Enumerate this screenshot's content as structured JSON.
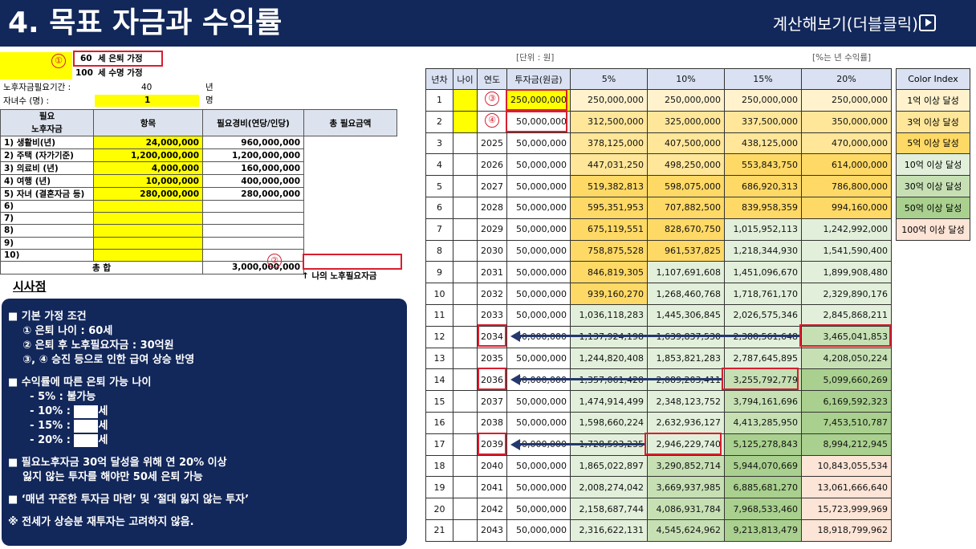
{
  "header": {
    "title": "4. 목표 자금과 수익률",
    "calc_link": "계산해보기(더블클릭)"
  },
  "inputs": {
    "retire_age": "60",
    "retire_label": "세 은퇴 가정",
    "life_age": "100",
    "life_label": "세 수명 가정",
    "period_label": "노후자금필요기간 :",
    "period_value": "40",
    "period_unit": "년",
    "children_label": "자녀수 (명) :",
    "children_value": "1",
    "children_unit": "명"
  },
  "needs": {
    "side_label_1": "필요",
    "side_label_2": "노후자금",
    "col_item": "항목",
    "col_cost": "필요경비(연당/인당)",
    "col_total": "총 필요금액",
    "rows": [
      {
        "item": "1) 생활비(년)",
        "cost": "24,000,000",
        "total": "960,000,000"
      },
      {
        "item": "2) 주택 (자가기준)",
        "cost": "1,200,000,000",
        "total": "1,200,000,000"
      },
      {
        "item": "3) 의료비 (년)",
        "cost": "4,000,000",
        "total": "160,000,000"
      },
      {
        "item": "4) 여행 (년)",
        "cost": "10,000,000",
        "total": "400,000,000"
      },
      {
        "item": "5) 자녀 (결혼자금 등)",
        "cost": "280,000,000",
        "total": "280,000,000"
      },
      {
        "item": "6)",
        "cost": "",
        "total": ""
      },
      {
        "item": "7)",
        "cost": "",
        "total": ""
      },
      {
        "item": "8)",
        "cost": "",
        "total": ""
      },
      {
        "item": "9)",
        "cost": "",
        "total": ""
      },
      {
        "item": "10)",
        "cost": "",
        "total": ""
      }
    ],
    "sum_label": "총 합",
    "sum_value": "3,000,000,000",
    "sum_note": "↑ 나의 노후필요자금"
  },
  "markers": {
    "m1": "①",
    "m2": "②",
    "m3": "③",
    "m4": "④"
  },
  "insight": {
    "title": "시사점",
    "lines": [
      "■ 기본 가정 조건",
      "    ① 은퇴 나이 : 60세",
      "    ② 은퇴 후 노후필요자금 : 30억원",
      "    ③, ④ 승진 등으로 인한 급여 상승 반영",
      "",
      "■ 수익률에 따른 은퇴 가능 나이",
      "      - 5% : 불가능",
      "      - 10% : ",
      "      - 15% : ",
      "      - 20% : ",
      "",
      "■ 필요노후자금 30억 달성을 위해 연 20% 이상",
      "    잃지 않는 투자를 해야만 50세 은퇴 가능",
      "",
      "■ ‘매년 꾸준한 투자금 마련’ 및 ‘절대 잃지 않는 투자’",
      "",
      "※ 전세가 상승분 재투자는 고려하지 않음."
    ],
    "mask_suffix": "세"
  },
  "table": {
    "unit_left": "[단위 : 원]",
    "unit_right": "[%는 년 수익률]",
    "headers": [
      "년차",
      "나이",
      "연도",
      "투자금(원금)",
      "5%",
      "10%",
      "15%",
      "20%"
    ],
    "rows": [
      [
        "1",
        "",
        "",
        "250,000,000",
        "250,000,000",
        "250,000,000",
        "250,000,000",
        "250,000,000"
      ],
      [
        "2",
        "",
        "",
        "50,000,000",
        "312,500,000",
        "325,000,000",
        "337,500,000",
        "350,000,000"
      ],
      [
        "3",
        "",
        "2025",
        "50,000,000",
        "378,125,000",
        "407,500,000",
        "438,125,000",
        "470,000,000"
      ],
      [
        "4",
        "",
        "2026",
        "50,000,000",
        "447,031,250",
        "498,250,000",
        "553,843,750",
        "614,000,000"
      ],
      [
        "5",
        "",
        "2027",
        "50,000,000",
        "519,382,813",
        "598,075,000",
        "686,920,313",
        "786,800,000"
      ],
      [
        "6",
        "",
        "2028",
        "50,000,000",
        "595,351,953",
        "707,882,500",
        "839,958,359",
        "994,160,000"
      ],
      [
        "7",
        "",
        "2029",
        "50,000,000",
        "675,119,551",
        "828,670,750",
        "1,015,952,113",
        "1,242,992,000"
      ],
      [
        "8",
        "",
        "2030",
        "50,000,000",
        "758,875,528",
        "961,537,825",
        "1,218,344,930",
        "1,541,590,400"
      ],
      [
        "9",
        "",
        "2031",
        "50,000,000",
        "846,819,305",
        "1,107,691,608",
        "1,451,096,670",
        "1,899,908,480"
      ],
      [
        "10",
        "",
        "2032",
        "50,000,000",
        "939,160,270",
        "1,268,460,768",
        "1,718,761,170",
        "2,329,890,176"
      ],
      [
        "11",
        "",
        "2033",
        "50,000,000",
        "1,036,118,283",
        "1,445,306,845",
        "2,026,575,346",
        "2,845,868,211"
      ],
      [
        "12",
        "",
        "2034",
        "50,000,000",
        "1,137,924,198",
        "1,639,837,530",
        "2,380,561,648",
        "3,465,041,853"
      ],
      [
        "13",
        "",
        "2035",
        "50,000,000",
        "1,244,820,408",
        "1,853,821,283",
        "2,787,645,895",
        "4,208,050,224"
      ],
      [
        "14",
        "",
        "2036",
        "50,000,000",
        "1,357,061,428",
        "2,089,203,411",
        "3,255,792,779",
        "5,099,660,269"
      ],
      [
        "15",
        "",
        "2037",
        "50,000,000",
        "1,474,914,499",
        "2,348,123,752",
        "3,794,161,696",
        "6,169,592,323"
      ],
      [
        "16",
        "",
        "2038",
        "50,000,000",
        "1,598,660,224",
        "2,632,936,127",
        "4,413,285,950",
        "7,453,510,787"
      ],
      [
        "17",
        "",
        "2039",
        "50,000,000",
        "1,728,593,235",
        "2,946,229,740",
        "5,125,278,843",
        "8,994,212,945"
      ],
      [
        "18",
        "",
        "2040",
        "50,000,000",
        "1,865,022,897",
        "3,290,852,714",
        "5,944,070,669",
        "10,843,055,534"
      ],
      [
        "19",
        "",
        "2041",
        "50,000,000",
        "2,008,274,042",
        "3,669,937,985",
        "6,885,681,270",
        "13,061,666,640"
      ],
      [
        "20",
        "",
        "2042",
        "50,000,000",
        "2,158,687,744",
        "4,086,931,784",
        "7,968,533,460",
        "15,723,999,969"
      ],
      [
        "21",
        "",
        "2043",
        "50,000,000",
        "2,316,622,131",
        "4,545,624,962",
        "9,213,813,479",
        "18,918,799,962"
      ]
    ]
  },
  "color_index": {
    "header": "Color Index",
    "items": [
      {
        "label": "1억 이상 달성",
        "color": "#fff2cc"
      },
      {
        "label": "3억 이상 달성",
        "color": "#ffe699"
      },
      {
        "label": "5억 이상 달성",
        "color": "#ffd966"
      },
      {
        "label": "10억 이상 달성",
        "color": "#e2efda"
      },
      {
        "label": "30억 이상 달성",
        "color": "#c6e0b4"
      },
      {
        "label": "50억 이상 달성",
        "color": "#a9d08e"
      },
      {
        "label": "100억 이상 달성",
        "color": "#fce4d6"
      }
    ]
  },
  "colors": {
    "navy": "#12275a",
    "marker_red": "#d71f2f",
    "input_yellow": "#ffff00",
    "header_blue": "#d9e1f2"
  }
}
